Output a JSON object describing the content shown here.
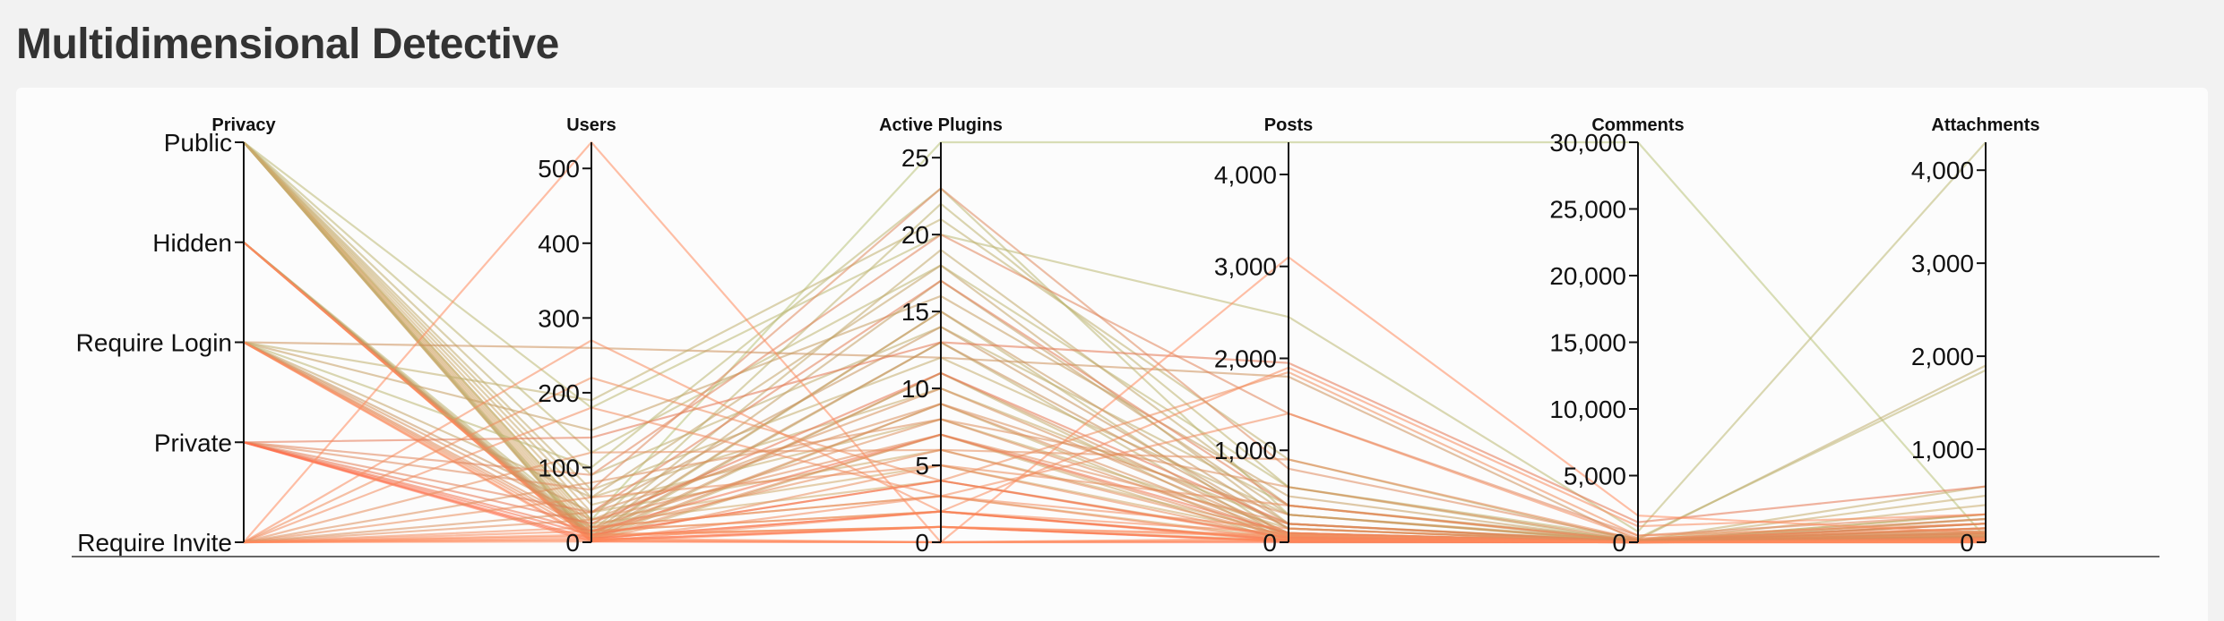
{
  "page": {
    "title": "Multidimensional Detective"
  },
  "colors": {
    "background": "#f2f2f2",
    "panel": "#fcfcfc",
    "axis": "#111111",
    "line_low": "#ff8a5c",
    "line_mid": "#c8905a",
    "line_high": "#b9c27a"
  },
  "chart_data": {
    "type": "parallel-coordinates",
    "title": "",
    "grid": false,
    "axes": [
      {
        "name": "Privacy",
        "kind": "categorical",
        "categories": [
          "Public",
          "Hidden",
          "Require Login",
          "Private",
          "Require Invite"
        ]
      },
      {
        "name": "Users",
        "kind": "linear",
        "domain": [
          0,
          535
        ],
        "ticks": [
          0,
          100,
          200,
          300,
          400,
          500
        ],
        "tick_labels": [
          "0",
          "100",
          "200",
          "300",
          "400",
          "500"
        ]
      },
      {
        "name": "Active Plugins",
        "kind": "linear",
        "domain": [
          0,
          26
        ],
        "ticks": [
          0,
          5,
          10,
          15,
          20,
          25
        ],
        "tick_labels": [
          "0",
          "5",
          "10",
          "15",
          "20",
          "25"
        ]
      },
      {
        "name": "Posts",
        "kind": "linear",
        "domain": [
          0,
          4350
        ],
        "ticks": [
          0,
          1000,
          2000,
          3000,
          4000
        ],
        "tick_labels": [
          "0",
          "1,000",
          "2,000",
          "3,000",
          "4,000"
        ]
      },
      {
        "name": "Comments",
        "kind": "linear",
        "domain": [
          0,
          30000
        ],
        "ticks": [
          0,
          5000,
          10000,
          15000,
          20000,
          25000,
          30000
        ],
        "tick_labels": [
          "0",
          "5,000",
          "10,000",
          "15,000",
          "20,000",
          "25,000",
          "30,000"
        ]
      },
      {
        "name": "Attachments",
        "kind": "linear",
        "domain": [
          0,
          4300
        ],
        "ticks": [
          0,
          1000,
          2000,
          3000,
          4000
        ],
        "tick_labels": [
          "0",
          "1,000",
          "2,000",
          "3,000",
          "4,000"
        ]
      }
    ],
    "records": [
      [
        "Public",
        30,
        26,
        4350,
        30000,
        50
      ],
      [
        "Public",
        180,
        20,
        2450,
        800,
        4300
      ],
      [
        "Public",
        120,
        18,
        600,
        300,
        1850
      ],
      [
        "Public",
        90,
        14,
        400,
        200,
        1900
      ],
      [
        "Public",
        70,
        12,
        300,
        150,
        600
      ],
      [
        "Public",
        60,
        10,
        200,
        100,
        500
      ],
      [
        "Public",
        50,
        8,
        150,
        60,
        400
      ],
      [
        "Public",
        40,
        6,
        100,
        40,
        300
      ],
      [
        "Public",
        30,
        5,
        80,
        30,
        250
      ],
      [
        "Public",
        25,
        4,
        60,
        20,
        200
      ],
      [
        "Public",
        20,
        3,
        40,
        10,
        150
      ],
      [
        "Public",
        15,
        2,
        30,
        5,
        100
      ],
      [
        "Public",
        10,
        1,
        20,
        3,
        80
      ],
      [
        "Public",
        8,
        15,
        50,
        5,
        60
      ],
      [
        "Public",
        5,
        13,
        30,
        2,
        40
      ],
      [
        "Public",
        3,
        11,
        10,
        1,
        20
      ],
      [
        "Public",
        2,
        9,
        5,
        1,
        10
      ],
      [
        "Public",
        1,
        7,
        0,
        0,
        0
      ],
      [
        "Hidden",
        20,
        22,
        600,
        50,
        300
      ],
      [
        "Hidden",
        15,
        19,
        400,
        40,
        250
      ],
      [
        "Hidden",
        12,
        17,
        300,
        30,
        200
      ],
      [
        "Hidden",
        10,
        15,
        200,
        20,
        150
      ],
      [
        "Hidden",
        8,
        13,
        150,
        15,
        100
      ],
      [
        "Hidden",
        6,
        11,
        100,
        10,
        80
      ],
      [
        "Hidden",
        5,
        9,
        80,
        8,
        60
      ],
      [
        "Hidden",
        4,
        7,
        60,
        5,
        40
      ],
      [
        "Hidden",
        3,
        5,
        40,
        3,
        30
      ],
      [
        "Hidden",
        2,
        3,
        20,
        2,
        20
      ],
      [
        "Hidden",
        1,
        2,
        10,
        1,
        10
      ],
      [
        "Hidden",
        1,
        1,
        5,
        0,
        5
      ],
      [
        "Require Login",
        260,
        12,
        1800,
        100,
        200
      ],
      [
        "Require Login",
        190,
        21,
        900,
        80,
        150
      ],
      [
        "Require Login",
        150,
        16,
        500,
        60,
        120
      ],
      [
        "Require Login",
        100,
        23,
        300,
        40,
        100
      ],
      [
        "Require Login",
        60,
        18,
        200,
        30,
        80
      ],
      [
        "Require Login",
        40,
        14,
        150,
        20,
        60
      ],
      [
        "Require Login",
        30,
        10,
        100,
        10,
        50
      ],
      [
        "Require Login",
        20,
        8,
        80,
        5,
        40
      ],
      [
        "Require Login",
        15,
        6,
        60,
        3,
        30
      ],
      [
        "Require Login",
        10,
        4,
        40,
        2,
        20
      ],
      [
        "Require Login",
        5,
        2,
        20,
        1,
        10
      ],
      [
        "Require Login",
        3,
        1,
        10,
        0,
        5
      ],
      [
        "Private",
        140,
        13,
        1950,
        1500,
        600
      ],
      [
        "Private",
        90,
        20,
        1400,
        500,
        300
      ],
      [
        "Private",
        70,
        23,
        800,
        200,
        250
      ],
      [
        "Private",
        40,
        17,
        400,
        100,
        200
      ],
      [
        "Private",
        25,
        11,
        200,
        50,
        150
      ],
      [
        "Private",
        15,
        7,
        100,
        20,
        100
      ],
      [
        "Private",
        10,
        4,
        50,
        10,
        50
      ],
      [
        "Private",
        5,
        2,
        20,
        5,
        20
      ],
      [
        "Private",
        3,
        1,
        10,
        2,
        10
      ],
      [
        "Private",
        1,
        0,
        0,
        0,
        0
      ],
      [
        "Require Invite",
        535,
        0,
        3100,
        2000,
        100
      ],
      [
        "Require Invite",
        270,
        2,
        1900,
        1200,
        300
      ],
      [
        "Require Invite",
        220,
        4,
        1850,
        500,
        200
      ],
      [
        "Require Invite",
        180,
        3,
        1400,
        300,
        150
      ],
      [
        "Require Invite",
        120,
        6,
        900,
        200,
        120
      ],
      [
        "Require Invite",
        80,
        8,
        600,
        150,
        100
      ],
      [
        "Require Invite",
        60,
        5,
        400,
        100,
        80
      ],
      [
        "Require Invite",
        40,
        9,
        300,
        80,
        60
      ],
      [
        "Require Invite",
        30,
        7,
        200,
        60,
        50
      ],
      [
        "Require Invite",
        20,
        3,
        150,
        40,
        40
      ],
      [
        "Require Invite",
        15,
        2,
        100,
        20,
        30
      ],
      [
        "Require Invite",
        10,
        1,
        80,
        10,
        20
      ],
      [
        "Require Invite",
        8,
        1,
        60,
        5,
        15
      ],
      [
        "Require Invite",
        5,
        0,
        40,
        2,
        10
      ],
      [
        "Require Invite",
        3,
        0,
        20,
        1,
        5
      ],
      [
        "Require Invite",
        1,
        0,
        10,
        0,
        0
      ]
    ]
  }
}
